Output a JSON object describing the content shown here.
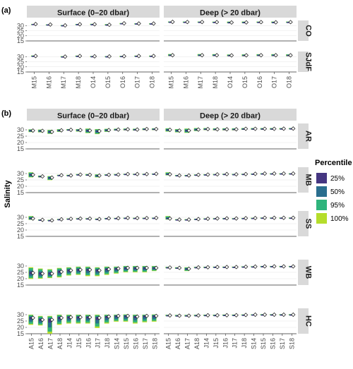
{
  "chart_data": [
    {
      "panel_label": "(a)",
      "type": "boxplot",
      "columns": [
        "Surface (0–20 dbar)",
        "Deep (> 20 dbar)"
      ],
      "rows": [
        "CO",
        "SJdF"
      ],
      "categories": [
        "M15",
        "M16",
        "M17",
        "M18",
        "O14",
        "O15",
        "O16",
        "O17",
        "O18"
      ],
      "ylim": [
        15,
        35
      ],
      "yticks": [
        15,
        20,
        25,
        30
      ],
      "ylabel": "Salinity",
      "series": {
        "CO": {
          "Surface (0–20 dbar)": [
            [
              31.3,
              31.5,
              31.6
            ],
            [
              30.8,
              31.0,
              31.2
            ],
            [
              29.9,
              30.2,
              30.5
            ],
            [
              31.0,
              31.3,
              31.6
            ],
            [
              30.9,
              31.3,
              31.7
            ],
            [
              30.2,
              30.8,
              31.4
            ],
            [
              32.0,
              32.2,
              32.4
            ],
            [
              31.8,
              32.0,
              32.2
            ],
            [
              31.8,
              32.0,
              32.2
            ]
          ],
          "Deep (> 20 dbar)": [
            [
              33.2,
              33.6,
              34.0
            ],
            [
              33.0,
              33.5,
              33.9
            ],
            [
              33.0,
              33.5,
              33.9
            ],
            [
              32.9,
              33.4,
              33.8
            ],
            [
              32.3,
              33.0,
              33.9
            ],
            [
              32.4,
              33.1,
              33.9
            ],
            [
              32.8,
              33.4,
              33.9
            ],
            [
              32.5,
              33.2,
              33.9
            ],
            [
              32.8,
              33.4,
              33.9
            ]
          ]
        },
        "SJdF": {
          "Surface (0–20 dbar)": [
            [
              29.9,
              30.6,
              31.1
            ],
            null,
            [
              29.6,
              30.0,
              30.4
            ],
            [
              29.9,
              30.6,
              31.0
            ],
            [
              30.0,
              30.3,
              30.6
            ],
            [
              29.9,
              30.2,
              30.5
            ],
            [
              30.1,
              30.4,
              30.7
            ],
            [
              30.2,
              30.6,
              31.0
            ],
            [
              30.2,
              30.6,
              31.0
            ]
          ],
          "Deep (> 20 dbar)": [
            [
              30.6,
              31.4,
              32.5
            ],
            null,
            [
              30.6,
              31.4,
              32.5
            ],
            [
              30.6,
              31.4,
              32.4
            ],
            [
              30.4,
              31.2,
              32.1
            ],
            [
              30.4,
              31.3,
              32.2
            ],
            [
              30.6,
              31.4,
              32.4
            ],
            [
              30.5,
              31.4,
              32.4
            ],
            [
              30.4,
              31.3,
              32.3
            ]
          ]
        }
      }
    },
    {
      "panel_label": "(b)",
      "type": "boxplot",
      "columns": [
        "Surface (0–20 dbar)",
        "Deep (> 20 dbar)"
      ],
      "rows": [
        "AR",
        "MB",
        "SS",
        "WB",
        "HC"
      ],
      "categories": [
        "A15",
        "A16",
        "A17",
        "A18",
        "J14",
        "J15",
        "J16",
        "J17",
        "J18",
        "S14",
        "S15",
        "S16",
        "S17",
        "S18"
      ],
      "ylim": [
        15,
        35
      ],
      "yticks": [
        15,
        20,
        25,
        30
      ],
      "ylabel": "Salinity",
      "series": {
        "AR": {
          "Surface (0–20 dbar)": [
            [
              28.2,
              29.4,
              30.4
            ],
            [
              28.0,
              29.2,
              30.2
            ],
            [
              26.8,
              28.4,
              30.0
            ],
            [
              28.4,
              29.6,
              30.5
            ],
            [
              29.4,
              30.0,
              30.6
            ],
            [
              28.6,
              29.8,
              30.6
            ],
            [
              27.4,
              29.4,
              31.0
            ],
            [
              26.6,
              29.0,
              30.6
            ],
            [
              28.4,
              29.8,
              30.8
            ],
            [
              29.4,
              30.2,
              30.9
            ],
            [
              29.6,
              30.4,
              31.0
            ],
            [
              29.4,
              30.2,
              30.9
            ],
            [
              29.8,
              30.6,
              31.2
            ],
            [
              29.8,
              30.6,
              31.2
            ]
          ],
          "Deep (> 20 dbar)": [
            [
              28.6,
              30.0,
              31.2
            ],
            [
              28.0,
              29.4,
              30.6
            ],
            [
              27.6,
              29.4,
              31.0
            ],
            [
              29.0,
              30.2,
              31.4
            ],
            [
              29.8,
              30.6,
              31.4
            ],
            [
              29.6,
              30.4,
              31.2
            ],
            [
              29.6,
              30.4,
              31.2
            ],
            [
              29.6,
              30.4,
              31.2
            ],
            [
              30.0,
              30.8,
              31.4
            ],
            [
              30.2,
              30.8,
              31.4
            ],
            [
              30.2,
              30.8,
              31.4
            ],
            [
              30.2,
              30.8,
              31.4
            ],
            [
              30.4,
              30.9,
              31.4
            ],
            [
              30.6,
              31.0,
              31.4
            ]
          ]
        },
        "MB": {
          "Surface (0–20 dbar)": [
            [
              27.0,
              29.0,
              31.0
            ],
            [
              27.0,
              27.8,
              28.4
            ],
            [
              24.8,
              26.8,
              28.0
            ],
            [
              28.2,
              28.7,
              29.0
            ],
            [
              28.0,
              28.5,
              29.0
            ],
            [
              28.8,
              29.2,
              29.6
            ],
            [
              28.4,
              29.0,
              29.6
            ],
            [
              27.0,
              28.4,
              29.4
            ],
            [
              28.6,
              29.0,
              29.4
            ],
            [
              28.8,
              29.2,
              29.6
            ],
            [
              29.4,
              29.6,
              29.8
            ],
            [
              29.4,
              29.6,
              29.8
            ],
            [
              29.4,
              29.6,
              29.8
            ],
            [
              29.6,
              29.8,
              30.0
            ]
          ],
          "Deep (> 20 dbar)": [
            [
              28.6,
              29.4,
              31.0
            ],
            [
              28.0,
              28.5,
              28.9
            ],
            [
              28.0,
              28.5,
              28.9
            ],
            [
              28.6,
              29.0,
              29.3
            ],
            [
              28.8,
              29.2,
              29.5
            ],
            [
              29.2,
              29.4,
              29.6
            ],
            [
              29.4,
              29.6,
              29.8
            ],
            [
              29.0,
              29.4,
              29.7
            ],
            [
              29.4,
              29.6,
              29.8
            ],
            [
              29.6,
              29.8,
              30.0
            ],
            [
              29.8,
              30.0,
              30.2
            ],
            [
              29.8,
              30.0,
              30.2
            ],
            [
              29.8,
              30.0,
              30.2
            ],
            [
              29.8,
              30.0,
              30.2
            ]
          ]
        },
        "SS": {
          "Surface (0–20 dbar)": [
            [
              28.0,
              29.0,
              31.0
            ],
            [
              27.6,
              28.0,
              28.3
            ],
            [
              27.2,
              27.6,
              28.0
            ],
            [
              28.0,
              28.4,
              28.7
            ],
            [
              28.5,
              28.8,
              29.1
            ],
            [
              28.6,
              29.0,
              29.3
            ],
            [
              28.7,
              29.0,
              29.3
            ],
            [
              28.2,
              28.6,
              29.0
            ],
            [
              28.9,
              29.2,
              29.4
            ],
            [
              29.0,
              29.3,
              29.5
            ],
            [
              29.3,
              29.5,
              29.7
            ],
            [
              29.2,
              29.4,
              29.6
            ],
            [
              29.2,
              29.4,
              29.6
            ],
            [
              29.3,
              29.5,
              29.7
            ]
          ],
          "Deep (> 20 dbar)": [
            [
              28.2,
              29.0,
              31.0
            ],
            [
              27.9,
              28.2,
              28.5
            ],
            [
              27.9,
              28.2,
              28.5
            ],
            [
              28.3,
              28.6,
              28.9
            ],
            [
              28.6,
              28.9,
              29.2
            ],
            [
              28.8,
              29.1,
              29.3
            ],
            [
              29.0,
              29.2,
              29.4
            ],
            [
              28.8,
              29.1,
              29.3
            ],
            [
              29.1,
              29.3,
              29.5
            ],
            [
              29.2,
              29.4,
              29.6
            ],
            [
              29.4,
              29.6,
              29.8
            ],
            [
              29.4,
              29.6,
              29.8
            ],
            [
              29.4,
              29.6,
              29.8
            ],
            [
              29.4,
              29.6,
              29.8
            ]
          ]
        },
        "WB": {
          "Surface (0–20 dbar)": [
            [
              19.8,
              24.5,
              29.0
            ],
            [
              20.0,
              24.0,
              28.0
            ],
            [
              20.5,
              24.0,
              27.5
            ],
            [
              21.0,
              25.5,
              28.5
            ],
            [
              22.5,
              26.5,
              29.0
            ],
            [
              23.0,
              27.0,
              29.5
            ],
            [
              22.0,
              27.0,
              29.5
            ],
            [
              22.0,
              26.5,
              29.0
            ],
            [
              23.0,
              27.5,
              29.5
            ],
            [
              24.0,
              28.0,
              29.5
            ],
            [
              25.0,
              28.5,
              30.0
            ],
            [
              25.0,
              28.5,
              30.0
            ],
            [
              25.0,
              28.5,
              30.0
            ],
            [
              26.0,
              28.5,
              30.0
            ]
          ],
          "Deep (> 20 dbar)": [
            [
              28.2,
              28.8,
              29.3
            ],
            [
              27.8,
              28.5,
              29.0
            ],
            [
              26.0,
              27.8,
              29.0
            ],
            [
              28.4,
              28.9,
              29.3
            ],
            [
              28.6,
              29.0,
              29.4
            ],
            [
              28.8,
              29.2,
              29.5
            ],
            [
              28.8,
              29.2,
              29.5
            ],
            [
              28.8,
              29.2,
              29.5
            ],
            [
              29.0,
              29.4,
              29.7
            ],
            [
              29.2,
              29.5,
              29.8
            ],
            [
              29.4,
              29.7,
              30.0
            ],
            [
              29.4,
              29.7,
              30.0
            ],
            [
              29.4,
              29.7,
              30.0
            ],
            [
              29.4,
              29.7,
              30.0
            ]
          ]
        },
        "HC": {
          "Surface (0–20 dbar)": [
            [
              22.0,
              27.5,
              30.0
            ],
            [
              21.5,
              26.0,
              29.0
            ],
            [
              15.0,
              26.0,
              29.0
            ],
            [
              22.0,
              27.5,
              30.0
            ],
            [
              23.0,
              28.0,
              30.0
            ],
            [
              23.0,
              28.0,
              30.0
            ],
            [
              23.0,
              28.0,
              30.0
            ],
            [
              19.5,
              27.5,
              30.0
            ],
            [
              23.0,
              28.5,
              30.0
            ],
            [
              24.5,
              29.0,
              30.0
            ],
            [
              24.5,
              29.0,
              30.2
            ],
            [
              23.0,
              28.5,
              30.0
            ],
            [
              24.0,
              29.0,
              30.0
            ],
            [
              24.5,
              29.0,
              30.2
            ]
          ],
          "Deep (> 20 dbar)": [
            [
              28.8,
              29.4,
              29.9
            ],
            [
              28.6,
              29.2,
              29.8
            ],
            [
              28.6,
              29.2,
              29.8
            ],
            [
              28.8,
              29.4,
              29.9
            ],
            [
              29.0,
              29.5,
              30.0
            ],
            [
              29.0,
              29.5,
              30.0
            ],
            [
              29.2,
              29.6,
              30.1
            ],
            [
              29.2,
              29.6,
              30.1
            ],
            [
              29.4,
              29.8,
              30.2
            ],
            [
              29.6,
              30.0,
              30.3
            ],
            [
              29.6,
              30.0,
              30.4
            ],
            [
              29.6,
              30.0,
              30.4
            ],
            [
              29.6,
              30.0,
              30.4
            ],
            [
              29.6,
              30.0,
              30.4
            ]
          ]
        }
      }
    }
  ],
  "legend": {
    "title": "Percentile",
    "entries": [
      {
        "label": "25%",
        "color": "#453681"
      },
      {
        "label": "50%",
        "color": "#2a6e8e"
      },
      {
        "label": "95%",
        "color": "#2fb47c"
      },
      {
        "label": "100%",
        "color": "#b5dd2b"
      }
    ]
  },
  "style": {
    "strip_fill": "#d9d9d9",
    "grid_color": "#e6e6e6",
    "median_marker": "white diamond"
  }
}
